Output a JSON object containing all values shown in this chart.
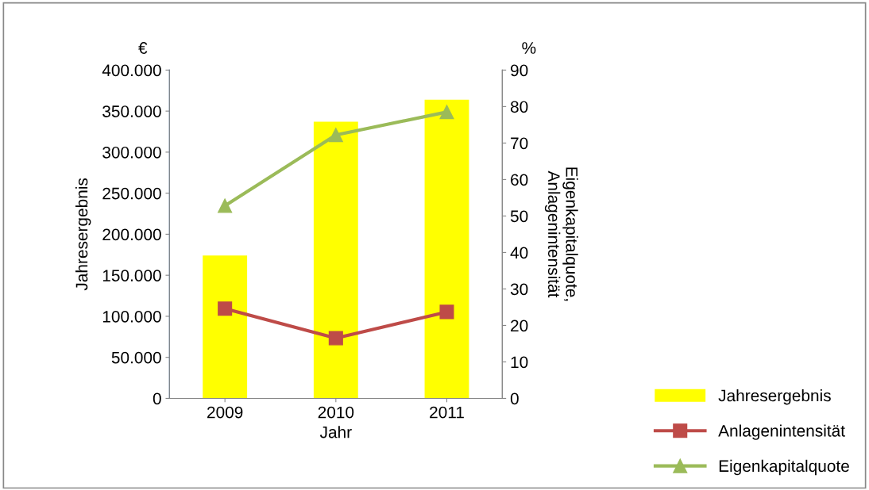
{
  "chart_data": {
    "type": "bar",
    "categories": [
      "2009",
      "2010",
      "2011"
    ],
    "xlabel": "Jahr",
    "ylabel": "Jahresergebnis",
    "y2label": "Eigenkapitalquote,\nAnlagenintensität",
    "annotations": [
      "€",
      "%"
    ],
    "series": [
      {
        "name": "Jahresergebnis",
        "color": "#ffff00",
        "values": [
          174000,
          337000,
          364000
        ]
      },
      {
        "name": "Anlagenintensität",
        "type": "line",
        "axis": "y2",
        "marker": "square",
        "color": "#be4b48",
        "values": [
          24.6,
          16.5,
          23.7
        ]
      },
      {
        "name": "Eigenkapitalquote",
        "type": "line",
        "axis": "y2",
        "marker": "triangle",
        "color": "#9bbb59",
        "values": [
          52.8,
          72.2,
          78.5
        ]
      }
    ],
    "ylim": [
      0,
      400000
    ],
    "yticks": [
      {
        "value": 0,
        "label": "0"
      },
      {
        "value": 50000,
        "label": "50.000"
      },
      {
        "value": 100000,
        "label": "100.000"
      },
      {
        "value": 150000,
        "label": "150.000"
      },
      {
        "value": 200000,
        "label": "200.000"
      },
      {
        "value": 250000,
        "label": "250.000"
      },
      {
        "value": 300000,
        "label": "300.000"
      },
      {
        "value": 350000,
        "label": "350.000"
      },
      {
        "value": 400000,
        "label": "400.000"
      }
    ],
    "y2lim": [
      0,
      90
    ],
    "y2ticks": [
      0,
      10,
      20,
      30,
      40,
      50,
      60,
      70,
      80,
      90
    ],
    "grid": false,
    "legend": "bottom right"
  }
}
